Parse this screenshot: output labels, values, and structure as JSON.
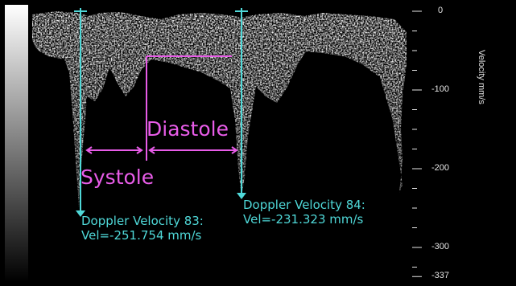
{
  "scale": {
    "axis_title": "Velocity mm/s",
    "ticks": [
      {
        "label": "0",
        "value": 0
      },
      {
        "label": "-100",
        "value": -100
      },
      {
        "label": "-200",
        "value": -200
      },
      {
        "label": "-300",
        "value": -300
      },
      {
        "label": "-337",
        "value": -337
      }
    ]
  },
  "annotations": {
    "systole_label": "Systole",
    "diastole_label": "Diastole",
    "measurement_83": {
      "name": "Doppler Velocity 83:",
      "value": "Vel=-251.754 mm/s"
    },
    "measurement_84": {
      "name": "Doppler Velocity 84:",
      "value": "Vel=-231.323 mm/s"
    }
  },
  "colors": {
    "caliper": "#4fd8d8",
    "annotation": "#e85ce8",
    "spectrum": "#ffffff",
    "background": "#000000"
  }
}
